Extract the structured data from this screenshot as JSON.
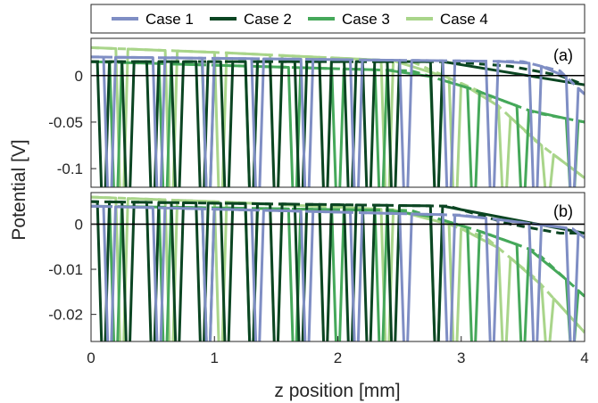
{
  "chart_data": {
    "type": "line",
    "xlabel": "z position [mm]",
    "ylabel": "Potential [V]",
    "xlim": [
      0,
      4
    ],
    "xticks": [
      0,
      1,
      2,
      3,
      4
    ],
    "xtick_labels": [
      "0",
      "1",
      "2",
      "3",
      "4"
    ],
    "legend": {
      "placement": "top",
      "entries": [
        {
          "name": "Case 1",
          "color": "#7f8ec4"
        },
        {
          "name": "Case 2",
          "color": "#0b4522"
        },
        {
          "name": "Case 3",
          "color": "#45a85a"
        },
        {
          "name": "Case 4",
          "color": "#a9d58a"
        }
      ]
    },
    "panels": [
      {
        "tag": "(a)",
        "ylim": [
          -0.12,
          0.04
        ],
        "yticks": [
          0,
          -0.05,
          -0.1
        ],
        "ytick_labels": [
          "0",
          "-0.05",
          "-0.1"
        ],
        "series": [
          {
            "name": "Case 1",
            "color": "#7f8ec4",
            "envelope_x": [
              0,
              3.5,
              3.8,
              4.0
            ],
            "envelope_y": [
              0.02,
              0.015,
              0.005,
              -0.02
            ],
            "spike_x": [
              0.15,
              0.55,
              0.95,
              1.35,
              1.75,
              2.15,
              2.55,
              2.9,
              3.25,
              3.6,
              3.9
            ],
            "spike_depth": -0.13
          },
          {
            "name": "Case 2",
            "color": "#0b4522",
            "envelope_x": [
              0,
              2.9,
              3.4,
              3.8,
              4.0
            ],
            "envelope_y": [
              0.015,
              0.015,
              0.01,
              0.0,
              -0.01
            ],
            "spike_x": [
              0.1,
              0.3,
              0.5,
              0.7,
              0.9,
              1.1,
              1.3,
              1.5,
              1.7,
              1.9,
              2.1,
              2.25,
              2.45,
              2.8
            ],
            "spike_depth": -0.13
          },
          {
            "name": "Case 3",
            "color": "#45a85a",
            "envelope_x": [
              0,
              2.6,
              3.1,
              3.6,
              4.0
            ],
            "envelope_y": [
              0.015,
              0.005,
              -0.015,
              -0.04,
              -0.05
            ],
            "spike_x": [
              0.2,
              0.6,
              0.95,
              1.3,
              1.65,
              2.0,
              2.35,
              2.8,
              3.1,
              3.5,
              3.9
            ],
            "spike_depth": -0.13
          },
          {
            "name": "Case 4",
            "color": "#a9d58a",
            "envelope_x": [
              0,
              1.0,
              2.6,
              3.2,
              3.6,
              4.0
            ],
            "envelope_y": [
              0.03,
              0.025,
              0.015,
              -0.02,
              -0.07,
              -0.11
            ],
            "spike_x": [
              0.25,
              0.65,
              1.05,
              1.5,
              1.9,
              2.4,
              2.95,
              3.35,
              3.7
            ],
            "spike_depth": -0.13
          }
        ]
      },
      {
        "tag": "(b)",
        "ylim": [
          -0.026,
          0.007
        ],
        "yticks": [
          0,
          -0.01,
          -0.02
        ],
        "ytick_labels": [
          "0",
          "-0.01",
          "-0.02"
        ],
        "series": [
          {
            "name": "Case 1",
            "color": "#7f8ec4",
            "envelope_x": [
              0,
              3.0,
              3.6,
              3.9,
              4.0
            ],
            "envelope_y": [
              0.004,
              0.002,
              0.0,
              -0.001,
              -0.003
            ],
            "spike_x": [
              0.15,
              0.55,
              0.95,
              1.35,
              1.75,
              2.15,
              2.55,
              2.9,
              3.25,
              3.6,
              3.9
            ],
            "spike_depth": -0.027
          },
          {
            "name": "Case 2",
            "color": "#0b4522",
            "envelope_x": [
              0,
              2.9,
              3.4,
              3.8,
              4.0
            ],
            "envelope_y": [
              0.005,
              0.004,
              0.0,
              -0.002,
              -0.002
            ],
            "spike_x": [
              0.1,
              0.3,
              0.5,
              0.7,
              0.9,
              1.1,
              1.3,
              1.5,
              1.7,
              1.9,
              2.1,
              2.25,
              2.45,
              2.8
            ],
            "spike_depth": -0.027
          },
          {
            "name": "Case 3",
            "color": "#45a85a",
            "envelope_x": [
              0,
              2.6,
              3.2,
              3.6,
              4.0
            ],
            "envelope_y": [
              0.004,
              0.003,
              -0.002,
              -0.006,
              -0.016
            ],
            "spike_x": [
              0.2,
              0.6,
              0.95,
              1.3,
              1.65,
              2.0,
              2.35,
              2.8,
              3.1,
              3.5,
              3.9
            ],
            "spike_depth": -0.027
          },
          {
            "name": "Case 4",
            "color": "#a9d58a",
            "envelope_x": [
              0,
              1.0,
              2.6,
              3.2,
              3.6,
              4.0
            ],
            "envelope_y": [
              0.006,
              0.005,
              0.003,
              -0.003,
              -0.012,
              -0.024
            ],
            "spike_x": [
              0.25,
              0.65,
              1.05,
              1.5,
              1.9,
              2.4,
              2.95,
              3.35,
              3.7
            ],
            "spike_depth": -0.027
          }
        ]
      }
    ]
  }
}
